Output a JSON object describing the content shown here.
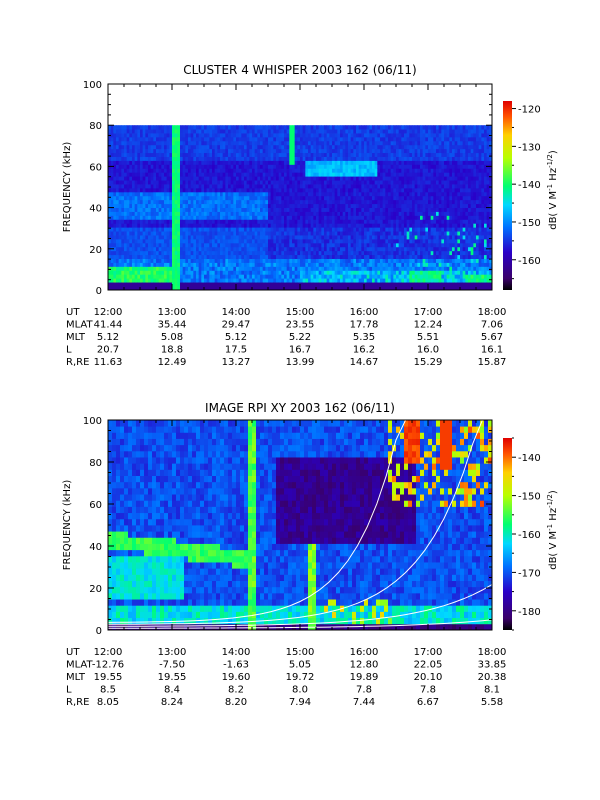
{
  "chart_data": [
    {
      "type": "heatmap",
      "title": "CLUSTER 4 WHISPER 2003 162 (06/11)",
      "ylabel": "FREQUENCY (kHz)",
      "ylim": [
        0,
        100
      ],
      "yticks": [
        "0",
        "20",
        "40",
        "60",
        "80",
        "100"
      ],
      "xticks": [
        "12:00",
        "13:00",
        "14:00",
        "15:00",
        "16:00",
        "17:00",
        "18:00"
      ],
      "colorbar": {
        "label": "dB( V M-1 Hz-1/2)",
        "range": [
          -168,
          -118
        ],
        "ticks": [
          "-120",
          "-130",
          "-140",
          "-150",
          "-160"
        ]
      },
      "data_ceiling_khz": 80,
      "ephemeris": [
        {
          "label": "UT",
          "values": [
            "12:00",
            "13:00",
            "14:00",
            "15:00",
            "16:00",
            "17:00",
            "18:00"
          ]
        },
        {
          "label": "MLAT",
          "values": [
            "41.44",
            "35.44",
            "29.47",
            "23.55",
            "17.78",
            "12.24",
            "7.06"
          ]
        },
        {
          "label": "MLT",
          "values": [
            "5.12",
            "5.08",
            "5.12",
            "5.22",
            "5.35",
            "5.51",
            "5.67"
          ]
        },
        {
          "label": "L",
          "values": [
            "20.7",
            "18.8",
            "17.5",
            "16.7",
            "16.2",
            "16.0",
            "16.1"
          ]
        },
        {
          "label": "R,RE",
          "values": [
            "11.63",
            "12.49",
            "13.27",
            "13.99",
            "14.67",
            "15.29",
            "15.87"
          ]
        }
      ]
    },
    {
      "type": "heatmap",
      "title": "IMAGE RPI XY 2003 162 (06/11)",
      "ylabel": "FREQUENCY (kHz)",
      "ylim": [
        0,
        100
      ],
      "yticks": [
        "0",
        "20",
        "40",
        "60",
        "80",
        "100"
      ],
      "xticks": [
        "12:00",
        "13:00",
        "14:00",
        "15:00",
        "16:00",
        "17:00",
        "18:00"
      ],
      "colorbar": {
        "label": "dB( V M-1 Hz-1/2)",
        "range": [
          -185,
          -135
        ],
        "ticks": [
          "-140",
          "-150",
          "-160",
          "-170",
          "-180"
        ]
      },
      "ephemeris": [
        {
          "label": "UT",
          "values": [
            "12:00",
            "13:00",
            "14:00",
            "15:00",
            "16:00",
            "17:00",
            "18:00"
          ]
        },
        {
          "label": "MLAT",
          "values": [
            "-12.76",
            "-7.50",
            "-1.63",
            "5.05",
            "12.80",
            "22.05",
            "33.85"
          ]
        },
        {
          "label": "MLT",
          "values": [
            "19.55",
            "19.55",
            "19.60",
            "19.72",
            "19.89",
            "20.10",
            "20.38"
          ]
        },
        {
          "label": "L",
          "values": [
            "8.5",
            "8.4",
            "8.2",
            "8.0",
            "7.8",
            "7.8",
            "8.1"
          ]
        },
        {
          "label": "R,RE",
          "values": [
            "8.05",
            "8.24",
            "8.20",
            "7.94",
            "7.44",
            "6.67",
            "5.58"
          ]
        }
      ]
    }
  ]
}
